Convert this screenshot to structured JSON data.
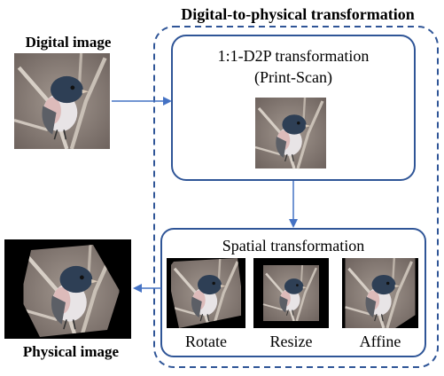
{
  "title": "Digital-to-physical transformation",
  "left": {
    "digital_label": "Digital image",
    "physical_label": "Physical image"
  },
  "d2p_box": {
    "line1": "1:1-D2P transformation",
    "line2": "(Print-Scan)"
  },
  "spatial_box": {
    "heading": "Spatial transformation",
    "captions": [
      "Rotate",
      "Resize",
      "Affine"
    ]
  },
  "colors": {
    "frame": "#2f5597",
    "arrow": "#4472c4",
    "bird_head": "#2e3f55",
    "bird_belly": "#e8e4e6",
    "background_blur": "#8b7f79"
  }
}
